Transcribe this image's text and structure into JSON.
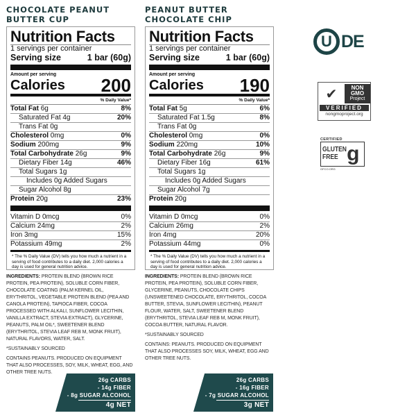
{
  "panels": [
    {
      "title": "CHOCOLATE PEANUT\nBUTTER CUP",
      "label": {
        "heading": "Nutrition Facts",
        "servings": "1  servings per container",
        "serving_size_label": "Serving size",
        "serving_size": "1 bar (60g)",
        "amount_per_serving": "Amount per serving",
        "calories_label": "Calories",
        "calories": "200",
        "dv_header": "% Daily Value*",
        "rows": [
          {
            "name": "Total Fat",
            "amount": "6g",
            "pct": "8%",
            "bold": true,
            "indent": 0
          },
          {
            "name": "Saturated Fat",
            "amount": "4g",
            "pct": "20%",
            "bold": false,
            "indent": 1
          },
          {
            "name": "Trans Fat",
            "amount": "0g",
            "pct": "",
            "bold": false,
            "indent": 1
          },
          {
            "name": "Cholesterol",
            "amount": "0mg",
            "pct": "0%",
            "bold": true,
            "indent": 0
          },
          {
            "name": "Sodium",
            "amount": "200mg",
            "pct": "9%",
            "bold": true,
            "indent": 0
          },
          {
            "name": "Total Carbohydrate",
            "amount": "26g",
            "pct": "9%",
            "bold": true,
            "indent": 0
          },
          {
            "name": "Dietary Fiber",
            "amount": "14g",
            "pct": "46%",
            "bold": false,
            "indent": 1
          },
          {
            "name": "Total Sugars",
            "amount": "1g",
            "pct": "",
            "bold": false,
            "indent": 1
          },
          {
            "name": "Includes 0g Added Sugars",
            "amount": "",
            "pct": "",
            "bold": false,
            "indent": 2
          },
          {
            "name": "Sugar Alcohol",
            "amount": "8g",
            "pct": "",
            "bold": false,
            "indent": 1
          },
          {
            "name": "Protein",
            "amount": "20g",
            "pct": "23%",
            "bold": true,
            "indent": 0
          }
        ],
        "vitamins": [
          {
            "name": "Vitamin D",
            "amount": "0mcg",
            "pct": "0%"
          },
          {
            "name": "Calcium",
            "amount": "24mg",
            "pct": "2%"
          },
          {
            "name": "Iron",
            "amount": "3mg",
            "pct": "15%"
          },
          {
            "name": "Potassium",
            "amount": "49mg",
            "pct": "2%"
          }
        ],
        "footnote": "* The % Daily Value (DV) tells you how much a nutrient in a serving of food contributes to a daily diet. 2,000 calories a day is used for general nutrition advice."
      },
      "ingredients_label": "INGREDIENTS:",
      "ingredients": " PROTEIN BLEND (BROWN RICE PROTEIN, PEA PROTEIN), SOLUBLE CORN FIBER, CHOCOLATE COATING (PALM KERNEL OIL, ERYTHRITOL, VEGETABLE PROTEIN BLEND (PEA AND CANOLA PROTEIN), TAPIOCA FIBER, COCOA PROCESSED WITH ALKALI, SUNFLOWER LECITHIN, VANILLA EXTRACT, STEVIA EXTRACT), GLYCERINE, PEANUTS, PALM OIL*, SWEETENER BLEND (ERYTHRITOL, STEVIA LEAF REB M, MONK FRUIT), NATURAL FLAVORS, WATER, SALT.",
      "sustainable": "*SUSTAINABLY SOURCED",
      "contains": "CONTAINS PEANUTS. PRODUCED ON EQUIPMENT THAT ALSO PROCESSES, SOY, MILK, WHEAT, EGG, AND OTHER TREE NUTS.",
      "net_carbs": {
        "carbs": "26g CARBS",
        "fiber": "- 14g FIBER",
        "sugar_alcohol": "- 8g SUGAR ALCOHOL",
        "total": "4g NET CARBS"
      }
    },
    {
      "title": "PEANUT BUTTER\nCHOCOLATE CHIP",
      "label": {
        "heading": "Nutrition Facts",
        "servings": "1  servings per container",
        "serving_size_label": "Serving size",
        "serving_size": "1 bar (60g)",
        "amount_per_serving": "Amount per serving",
        "calories_label": "Calories",
        "calories": "190",
        "dv_header": "% Daily Value*",
        "rows": [
          {
            "name": "Total Fat",
            "amount": "5g",
            "pct": "6%",
            "bold": true,
            "indent": 0
          },
          {
            "name": "Saturated Fat",
            "amount": "1.5g",
            "pct": "8%",
            "bold": false,
            "indent": 1
          },
          {
            "name": "Trans Fat",
            "amount": "0g",
            "pct": "",
            "bold": false,
            "indent": 1
          },
          {
            "name": "Cholesterol",
            "amount": "0mg",
            "pct": "0%",
            "bold": true,
            "indent": 0
          },
          {
            "name": "Sodium",
            "amount": "220mg",
            "pct": "10%",
            "bold": true,
            "indent": 0
          },
          {
            "name": "Total Carbohydrate",
            "amount": "26g",
            "pct": "9%",
            "bold": true,
            "indent": 0
          },
          {
            "name": "Dietary Fiber",
            "amount": "16g",
            "pct": "61%",
            "bold": false,
            "indent": 1
          },
          {
            "name": "Total Sugars",
            "amount": "1g",
            "pct": "",
            "bold": false,
            "indent": 1
          },
          {
            "name": "Includes 0g Added Sugars",
            "amount": "",
            "pct": "",
            "bold": false,
            "indent": 2
          },
          {
            "name": "Sugar Alcohol",
            "amount": "7g",
            "pct": "",
            "bold": false,
            "indent": 1
          },
          {
            "name": "Protein",
            "amount": "20g",
            "pct": "",
            "bold": true,
            "indent": 0
          }
        ],
        "vitamins": [
          {
            "name": "Vitamin D",
            "amount": "0mcg",
            "pct": "0%"
          },
          {
            "name": "Calcium",
            "amount": "26mg",
            "pct": "2%"
          },
          {
            "name": "Iron",
            "amount": "4mg",
            "pct": "20%"
          },
          {
            "name": "Potassium",
            "amount": "44mg",
            "pct": "0%"
          }
        ],
        "footnote": "* The % Daily Value (DV) tells you how much a nutrient in a serving of food contributes to a daily diet. 2,000 calories a day is used for general nutrition advice."
      },
      "ingredients_label": "INGREDIENTS:",
      "ingredients": " PROTEIN BLEND (BROWN RICE PROTEIN, PEA PROTEIN), SOLUBLE CORN FIBER, GLYCERINE, PEANUTS, CHOCOLATE CHIPS (UNSWEETENED CHOCOLATE, ERYTHRITOL, COCOA BUTTER, STEVIA, SUNFLOWER LECITHIN), PEANUT FLOUR, WATER, SALT, SWEETENER BLEND (ERYTHRITOL, STEVIA LEAF REB M, MONK FRUIT), COCOA BUTTER, NATURAL FLAVOR.",
      "sustainable": "*SUSTAINABLY SOURCED",
      "contains": "CONTAINS: PEANUTS. PRODUCED ON EQUIPMENT THAT ALSO PROCESSES SOY, MILK, WHEAT, EGG AND OTHER TREE NUTS.",
      "net_carbs": {
        "carbs": "26g CARBS",
        "fiber": "- 16g FIBER",
        "sugar_alcohol": "- 7g SUGAR ALCOHOL",
        "total": "3g NET CARBS"
      }
    }
  ],
  "badges": {
    "kosher": {
      "letter": "U",
      "suffix": "DE"
    },
    "non_gmo": {
      "line1": "NON",
      "line2": "GMO",
      "line3": "Project",
      "verified": "VERIFIED",
      "url": "nongmoproject.org"
    },
    "gluten_free": {
      "certified": "CERTIFIED",
      "line1": "GLUTEN",
      "line2": "FREE",
      "org": "GFCO.ORG"
    }
  },
  "colors": {
    "brand_teal": "#1f4a4c"
  }
}
